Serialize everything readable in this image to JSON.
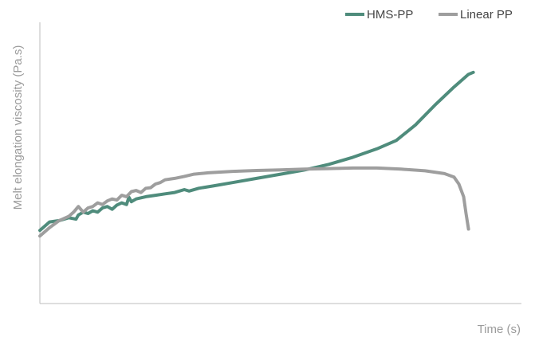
{
  "chart_data": {
    "type": "line",
    "title": "",
    "xlabel": "Time (s)",
    "ylabel": "Melt elongation viscosity (Pa.s)",
    "legend_position": "top-right",
    "grid": false,
    "x_ticks_shown": false,
    "y_ticks_shown": false,
    "xlim": [
      0,
      1
    ],
    "ylim": [
      0,
      1
    ],
    "series": [
      {
        "name": "HMS-PP",
        "color": "#4f8c7c",
        "points": [
          [
            0.0,
            0.26
          ],
          [
            0.02,
            0.29
          ],
          [
            0.04,
            0.295
          ],
          [
            0.06,
            0.305
          ],
          [
            0.075,
            0.3
          ],
          [
            0.08,
            0.315
          ],
          [
            0.09,
            0.325
          ],
          [
            0.1,
            0.32
          ],
          [
            0.11,
            0.33
          ],
          [
            0.12,
            0.325
          ],
          [
            0.13,
            0.34
          ],
          [
            0.14,
            0.345
          ],
          [
            0.15,
            0.335
          ],
          [
            0.16,
            0.35
          ],
          [
            0.17,
            0.358
          ],
          [
            0.18,
            0.352
          ],
          [
            0.185,
            0.378
          ],
          [
            0.19,
            0.362
          ],
          [
            0.2,
            0.372
          ],
          [
            0.22,
            0.38
          ],
          [
            0.24,
            0.385
          ],
          [
            0.26,
            0.39
          ],
          [
            0.28,
            0.395
          ],
          [
            0.3,
            0.405
          ],
          [
            0.31,
            0.4
          ],
          [
            0.33,
            0.41
          ],
          [
            0.36,
            0.418
          ],
          [
            0.4,
            0.43
          ],
          [
            0.45,
            0.445
          ],
          [
            0.5,
            0.46
          ],
          [
            0.55,
            0.475
          ],
          [
            0.6,
            0.495
          ],
          [
            0.65,
            0.52
          ],
          [
            0.7,
            0.55
          ],
          [
            0.74,
            0.58
          ],
          [
            0.78,
            0.635
          ],
          [
            0.82,
            0.705
          ],
          [
            0.86,
            0.77
          ],
          [
            0.89,
            0.815
          ],
          [
            0.9,
            0.822
          ]
        ]
      },
      {
        "name": "Linear PP",
        "color": "#9e9e9e",
        "points": [
          [
            0.0,
            0.24
          ],
          [
            0.02,
            0.27
          ],
          [
            0.04,
            0.295
          ],
          [
            0.06,
            0.31
          ],
          [
            0.07,
            0.325
          ],
          [
            0.08,
            0.345
          ],
          [
            0.09,
            0.325
          ],
          [
            0.1,
            0.34
          ],
          [
            0.11,
            0.345
          ],
          [
            0.12,
            0.358
          ],
          [
            0.13,
            0.352
          ],
          [
            0.14,
            0.365
          ],
          [
            0.15,
            0.372
          ],
          [
            0.16,
            0.368
          ],
          [
            0.17,
            0.385
          ],
          [
            0.18,
            0.38
          ],
          [
            0.19,
            0.398
          ],
          [
            0.2,
            0.402
          ],
          [
            0.21,
            0.395
          ],
          [
            0.22,
            0.41
          ],
          [
            0.23,
            0.412
          ],
          [
            0.24,
            0.425
          ],
          [
            0.25,
            0.43
          ],
          [
            0.26,
            0.44
          ],
          [
            0.28,
            0.445
          ],
          [
            0.3,
            0.452
          ],
          [
            0.32,
            0.46
          ],
          [
            0.35,
            0.465
          ],
          [
            0.4,
            0.47
          ],
          [
            0.45,
            0.473
          ],
          [
            0.5,
            0.475
          ],
          [
            0.55,
            0.478
          ],
          [
            0.6,
            0.48
          ],
          [
            0.65,
            0.482
          ],
          [
            0.7,
            0.482
          ],
          [
            0.75,
            0.478
          ],
          [
            0.8,
            0.472
          ],
          [
            0.84,
            0.462
          ],
          [
            0.86,
            0.45
          ],
          [
            0.87,
            0.425
          ],
          [
            0.88,
            0.38
          ],
          [
            0.885,
            0.32
          ],
          [
            0.89,
            0.265
          ]
        ]
      }
    ]
  }
}
